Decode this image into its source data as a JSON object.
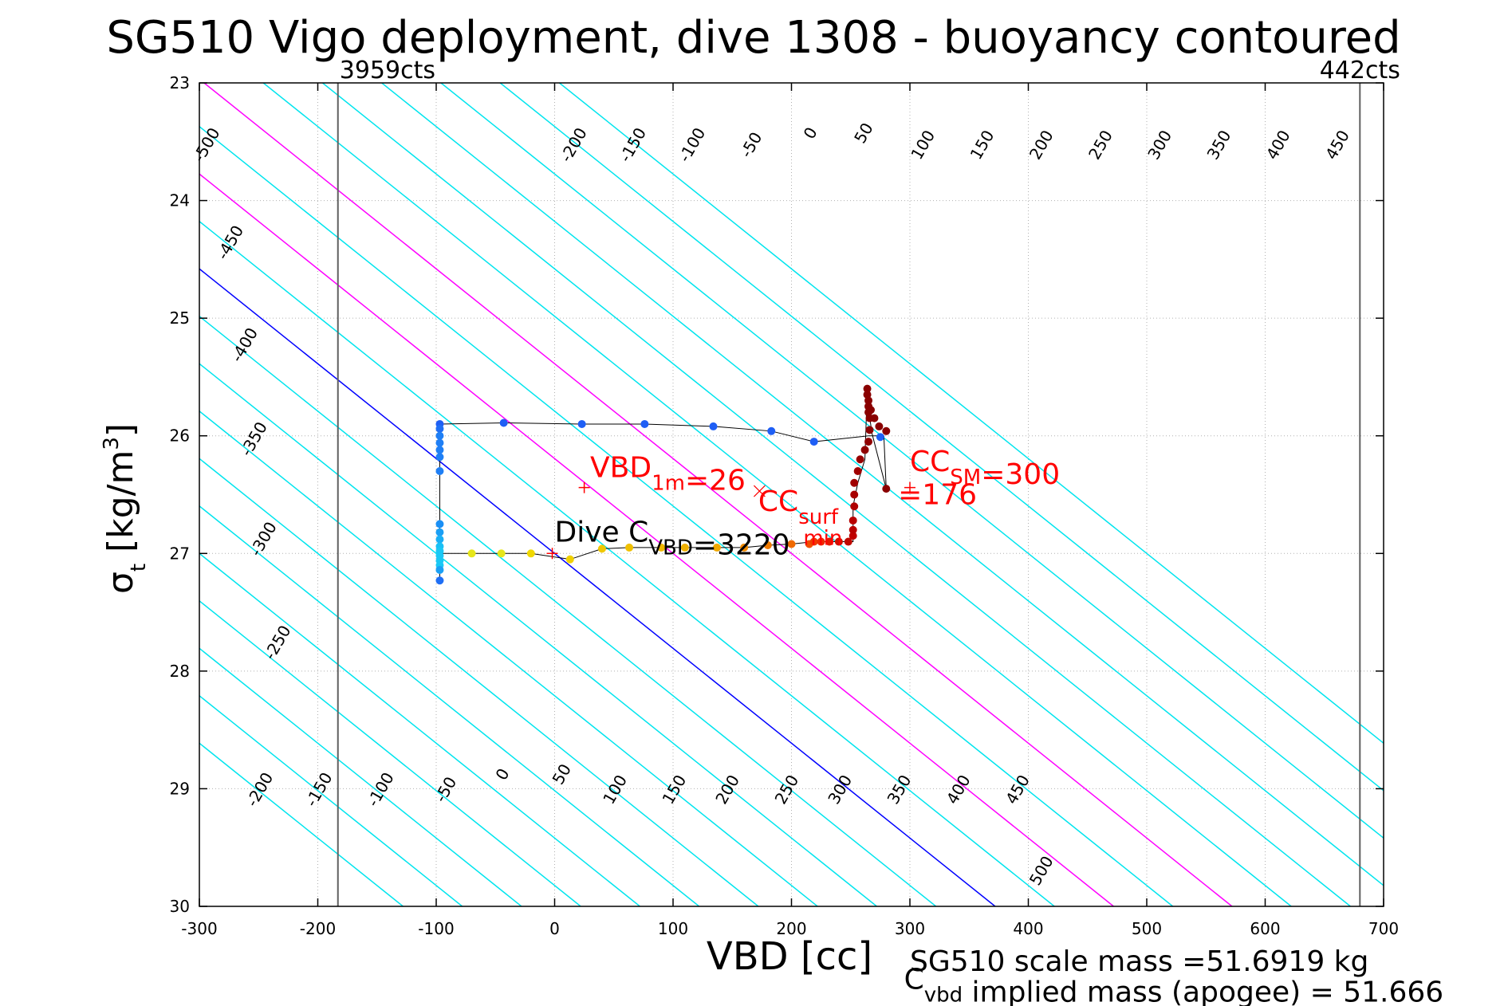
{
  "chart_data": {
    "type": "scatter",
    "title": "SG510 Vigo deployment, dive 1308 - buoyancy contoured",
    "xlabel": "VBD [cc]",
    "ylabel_main": "σ",
    "ylabel_sub": "t",
    "ylabel_unit_a": " [kg/m",
    "ylabel_unit_sup": "3",
    "ylabel_unit_b": "]",
    "xlim": [
      -300,
      700
    ],
    "ylim": [
      23,
      30
    ],
    "y_reversed": true,
    "grid": true,
    "x_ticks": [
      -300,
      -200,
      -100,
      0,
      100,
      200,
      300,
      400,
      500,
      600,
      700
    ],
    "x_tick_labels": [
      "-300",
      "-200",
      "-100",
      "0",
      "100",
      "200",
      "300",
      "400",
      "500",
      "600",
      "700"
    ],
    "y_ticks": [
      23,
      24,
      25,
      26,
      27,
      28,
      29,
      30
    ],
    "y_tick_labels": [
      "23",
      "24",
      "25",
      "26",
      "27",
      "28",
      "29",
      "30"
    ],
    "contour_slope": 124,
    "contours": [
      {
        "value": -500,
        "label": "-500",
        "color": "#00e5ee"
      },
      {
        "value": -450,
        "label": "-450",
        "color": "#00e5ee"
      },
      {
        "value": -400,
        "label": "-400",
        "color": "#00e5ee"
      },
      {
        "value": -350,
        "label": "-350",
        "color": "#00e5ee"
      },
      {
        "value": -300,
        "label": "-300",
        "color": "#00e5ee"
      },
      {
        "value": -250,
        "label": "-250",
        "color": "#00e5ee"
      },
      {
        "value": -200,
        "label": "-200",
        "color": "#00e5ee"
      },
      {
        "value": -150,
        "label": "-150",
        "color": "#00e5ee"
      },
      {
        "value": -100,
        "label": "-100",
        "color": "#00e5ee"
      },
      {
        "value": -50,
        "label": "-50",
        "color": "#00e5ee"
      },
      {
        "value": 0,
        "label": "0",
        "color": "#0000ff"
      },
      {
        "value": 50,
        "label": "50",
        "color": "#00e5ee"
      },
      {
        "value": 100,
        "label": "100",
        "color": "#ff00ff"
      },
      {
        "value": 150,
        "label": "150",
        "color": "#00e5ee"
      },
      {
        "value": 200,
        "label": "200",
        "color": "#ff00ff"
      },
      {
        "value": 250,
        "label": "250",
        "color": "#00e5ee"
      },
      {
        "value": 300,
        "label": "300",
        "color": "#00e5ee"
      },
      {
        "value": 350,
        "label": "350",
        "color": "#00e5ee"
      },
      {
        "value": 400,
        "label": "400",
        "color": "#00e5ee"
      },
      {
        "value": 450,
        "label": "450",
        "color": "#00e5ee"
      },
      {
        "value": 500,
        "label": "500",
        "color": "#00e5ee"
      }
    ],
    "contour_labels": [
      {
        "text": "-500",
        "x": -290,
        "y": 23.55
      },
      {
        "text": "-450",
        "x": -270,
        "y": 24.38
      },
      {
        "text": "-400",
        "x": -258,
        "y": 25.25
      },
      {
        "text": "-350",
        "x": -250,
        "y": 26.05
      },
      {
        "text": "-300",
        "x": -242,
        "y": 26.9
      },
      {
        "text": "-250",
        "x": -230,
        "y": 27.78
      },
      {
        "text": "-200",
        "x": -245,
        "y": 29.03
      },
      {
        "text": "-150",
        "x": -195,
        "y": 29.03
      },
      {
        "text": "-100",
        "x": -143,
        "y": 29.03
      },
      {
        "text": "-50",
        "x": -88,
        "y": 29.03
      },
      {
        "text": "0",
        "x": -40,
        "y": 28.9
      },
      {
        "text": "50",
        "x": 10,
        "y": 28.9
      },
      {
        "text": "100",
        "x": 55,
        "y": 29.03
      },
      {
        "text": "150",
        "x": 105,
        "y": 29.03
      },
      {
        "text": "200",
        "x": 150,
        "y": 29.03
      },
      {
        "text": "250",
        "x": 200,
        "y": 29.03
      },
      {
        "text": "300",
        "x": 245,
        "y": 29.03
      },
      {
        "text": "350",
        "x": 295,
        "y": 29.03
      },
      {
        "text": "400",
        "x": 345,
        "y": 29.03
      },
      {
        "text": "450",
        "x": 395,
        "y": 29.03
      },
      {
        "text": "500",
        "x": 415,
        "y": 29.72
      },
      {
        "text": "-200",
        "x": 20,
        "y": 23.55
      },
      {
        "text": "-150",
        "x": 70,
        "y": 23.55
      },
      {
        "text": "-100",
        "x": 120,
        "y": 23.55
      },
      {
        "text": "-50",
        "x": 170,
        "y": 23.55
      },
      {
        "text": "0",
        "x": 220,
        "y": 23.45
      },
      {
        "text": "50",
        "x": 265,
        "y": 23.45
      },
      {
        "text": "100",
        "x": 315,
        "y": 23.55
      },
      {
        "text": "150",
        "x": 365,
        "y": 23.55
      },
      {
        "text": "200",
        "x": 415,
        "y": 23.55
      },
      {
        "text": "250",
        "x": 465,
        "y": 23.55
      },
      {
        "text": "300",
        "x": 515,
        "y": 23.55
      },
      {
        "text": "350",
        "x": 565,
        "y": 23.55
      },
      {
        "text": "400",
        "x": 615,
        "y": 23.55
      },
      {
        "text": "450",
        "x": 665,
        "y": 23.55
      }
    ],
    "vertical_lines": [
      {
        "x": -183,
        "label": "3959cts",
        "label_anchor": "start"
      },
      {
        "x": 680,
        "label": "442cts",
        "label_anchor": "middle"
      }
    ],
    "trace_line": [
      [
        -97,
        25.9
      ],
      [
        -43,
        25.89
      ],
      [
        23,
        25.9
      ],
      [
        76,
        25.9
      ],
      [
        134,
        25.92
      ],
      [
        183,
        25.96
      ],
      [
        219,
        26.05
      ],
      [
        265,
        26.0
      ],
      [
        278,
        26.0
      ],
      [
        280,
        26.45
      ],
      [
        280,
        26.45
      ],
      [
        268,
        25.98
      ],
      [
        264,
        25.7
      ],
      [
        264,
        25.6
      ],
      [
        262,
        26.2
      ],
      [
        256,
        26.4
      ],
      [
        252,
        26.6
      ],
      [
        252,
        26.9
      ],
      [
        240,
        26.9
      ],
      [
        219,
        26.9
      ],
      [
        200,
        26.92
      ],
      [
        180,
        26.93
      ],
      [
        160,
        26.95
      ],
      [
        137,
        26.95
      ],
      [
        110,
        26.95
      ],
      [
        90,
        26.95
      ],
      [
        63,
        26.95
      ],
      [
        40,
        26.96
      ],
      [
        13,
        27.05
      ],
      [
        -20,
        27.0
      ],
      [
        -45,
        27.0
      ],
      [
        -70,
        27.0
      ],
      [
        -97,
        27.0
      ],
      [
        -97,
        27.2
      ],
      [
        -97,
        26.5
      ],
      [
        -97,
        26.0
      ],
      [
        -97,
        25.9
      ]
    ],
    "points": [
      {
        "x": -97,
        "y": 25.9,
        "c": "#1f5ff5"
      },
      {
        "x": -43,
        "y": 25.89,
        "c": "#1f5ff5"
      },
      {
        "x": 23,
        "y": 25.9,
        "c": "#1f5ff5"
      },
      {
        "x": 76,
        "y": 25.9,
        "c": "#1f5ff5"
      },
      {
        "x": 134,
        "y": 25.92,
        "c": "#1f5ff5"
      },
      {
        "x": 183,
        "y": 25.96,
        "c": "#1f5ff5"
      },
      {
        "x": 219,
        "y": 26.05,
        "c": "#1f5ff5"
      },
      {
        "x": 275,
        "y": 26.01,
        "c": "#1f5ff5"
      },
      {
        "x": -97,
        "y": 25.94,
        "c": "#1f6ff5"
      },
      {
        "x": -97,
        "y": 26.0,
        "c": "#1f7ff5"
      },
      {
        "x": -97,
        "y": 26.06,
        "c": "#1f7ff5"
      },
      {
        "x": -97,
        "y": 26.12,
        "c": "#1f7ff5"
      },
      {
        "x": -97,
        "y": 26.18,
        "c": "#1f7ff5"
      },
      {
        "x": -97,
        "y": 26.3,
        "c": "#1f7ff5"
      },
      {
        "x": -97,
        "y": 26.75,
        "c": "#1a8ff5"
      },
      {
        "x": -97,
        "y": 26.82,
        "c": "#1a9ff5"
      },
      {
        "x": -97,
        "y": 26.88,
        "c": "#1aaff5"
      },
      {
        "x": -97,
        "y": 26.94,
        "c": "#1ac0f5"
      },
      {
        "x": -97,
        "y": 26.98,
        "c": "#1ac8f5"
      },
      {
        "x": -97,
        "y": 27.02,
        "c": "#1ac8f5"
      },
      {
        "x": -97,
        "y": 27.06,
        "c": "#1ac8f5"
      },
      {
        "x": -97,
        "y": 27.1,
        "c": "#1ac8f5"
      },
      {
        "x": -97,
        "y": 27.14,
        "c": "#1aa0f5"
      },
      {
        "x": -97,
        "y": 27.23,
        "c": "#1f6ff5"
      },
      {
        "x": -70,
        "y": 27.0,
        "c": "#e6e61a"
      },
      {
        "x": -45,
        "y": 27.0,
        "c": "#e6e61a"
      },
      {
        "x": -20,
        "y": 27.0,
        "c": "#f0d800"
      },
      {
        "x": 13,
        "y": 27.05,
        "c": "#f0d000"
      },
      {
        "x": 40,
        "y": 26.96,
        "c": "#f0c800"
      },
      {
        "x": 63,
        "y": 26.95,
        "c": "#f0c000"
      },
      {
        "x": 90,
        "y": 26.95,
        "c": "#f0b800"
      },
      {
        "x": 110,
        "y": 26.95,
        "c": "#f0b000"
      },
      {
        "x": 137,
        "y": 26.95,
        "c": "#f0a800"
      },
      {
        "x": 160,
        "y": 26.95,
        "c": "#f08a00"
      },
      {
        "x": 180,
        "y": 26.93,
        "c": "#f07a00"
      },
      {
        "x": 200,
        "y": 26.92,
        "c": "#f06a00"
      },
      {
        "x": 215,
        "y": 26.92,
        "c": "#f05000"
      },
      {
        "x": 219,
        "y": 26.9,
        "c": "#f03a00"
      },
      {
        "x": 225,
        "y": 26.9,
        "c": "#f02a00"
      },
      {
        "x": 232,
        "y": 26.9,
        "c": "#e61a00"
      },
      {
        "x": 240,
        "y": 26.9,
        "c": "#d01000"
      },
      {
        "x": 248,
        "y": 26.9,
        "c": "#c00a00"
      },
      {
        "x": 252,
        "y": 26.85,
        "c": "#c00000"
      },
      {
        "x": 252,
        "y": 26.8,
        "c": "#b80000"
      },
      {
        "x": 252,
        "y": 26.72,
        "c": "#b80000"
      },
      {
        "x": 253,
        "y": 26.6,
        "c": "#b00000"
      },
      {
        "x": 253,
        "y": 26.5,
        "c": "#a80000"
      },
      {
        "x": 253,
        "y": 26.4,
        "c": "#a00000"
      },
      {
        "x": 256,
        "y": 26.3,
        "c": "#a00000"
      },
      {
        "x": 258,
        "y": 26.2,
        "c": "#980000"
      },
      {
        "x": 262,
        "y": 26.12,
        "c": "#900000"
      },
      {
        "x": 265,
        "y": 26.05,
        "c": "#900000"
      },
      {
        "x": 266,
        "y": 25.95,
        "c": "#8a0000"
      },
      {
        "x": 266,
        "y": 25.85,
        "c": "#8a0000"
      },
      {
        "x": 265,
        "y": 25.8,
        "c": "#8a0000"
      },
      {
        "x": 265,
        "y": 25.75,
        "c": "#8a0000"
      },
      {
        "x": 265,
        "y": 25.7,
        "c": "#8a0000"
      },
      {
        "x": 264,
        "y": 25.65,
        "c": "#8a0000"
      },
      {
        "x": 264,
        "y": 25.6,
        "c": "#8a0000"
      },
      {
        "x": 267,
        "y": 25.78,
        "c": "#8a0000"
      },
      {
        "x": 270,
        "y": 25.85,
        "c": "#8a0000"
      },
      {
        "x": 274,
        "y": 25.92,
        "c": "#8a0000"
      },
      {
        "x": 280,
        "y": 25.96,
        "c": "#8a0000"
      },
      {
        "x": 280,
        "y": 26.45,
        "c": "#8a0000"
      }
    ],
    "markers": [
      {
        "x": 25,
        "y": 26.44,
        "sym": "+",
        "c": "#ff0000"
      },
      {
        "x": 300,
        "y": 26.44,
        "sym": "+",
        "c": "#ff0000"
      },
      {
        "x": -2,
        "y": 27.0,
        "sym": "+",
        "c": "#ff0000"
      },
      {
        "x": 173,
        "y": 26.47,
        "sym": "x",
        "c": "#ff0000"
      }
    ],
    "annotations": [
      {
        "x": 30,
        "y": 26.35,
        "color": "#ff0000",
        "parts": [
          {
            "t": "VBD",
            "sub": false
          },
          {
            "t": "1m",
            "sub": true
          },
          {
            "t": "=26",
            "sub": false
          }
        ]
      },
      {
        "x": 172,
        "y": 26.64,
        "color": "#ff0000",
        "parts": [
          {
            "t": "CC",
            "sub": false
          },
          {
            "t": "surf",
            "sub": true
          }
        ]
      },
      {
        "x": 300,
        "y": 26.3,
        "color": "#ff0000",
        "parts": [
          {
            "t": "CC",
            "sub": false
          },
          {
            "t": "SM",
            "sub": true
          },
          {
            "t": "=300",
            "sub": false
          }
        ]
      },
      {
        "x": 210,
        "y": 26.82,
        "color": "#ff0000",
        "parts": [
          {
            "t": "min",
            "sub": true
          }
        ]
      },
      {
        "x": 290,
        "y": 26.58,
        "color": "#ff0000",
        "parts": [
          {
            "t": "=176",
            "sub": false
          }
        ]
      },
      {
        "x": 0,
        "y": 26.9,
        "color": "#000000",
        "parts": [
          {
            "t": "Dive C",
            "sub": false
          },
          {
            "t": "VBD",
            "sub": true
          },
          {
            "t": "=3220",
            "sub": false
          }
        ]
      }
    ],
    "footer": [
      {
        "x": 300,
        "y": 30.55,
        "parts": [
          {
            "t": "SG510 scale mass =51.6919 kg",
            "sub": false
          }
        ]
      },
      {
        "x": 295,
        "y": 30.7,
        "parts": [
          {
            "t": "C",
            "sub": false
          },
          {
            "t": "vbd",
            "sub": true
          },
          {
            "t": " implied mass (apogee) = 51.666",
            "sub": false
          }
        ]
      }
    ]
  }
}
